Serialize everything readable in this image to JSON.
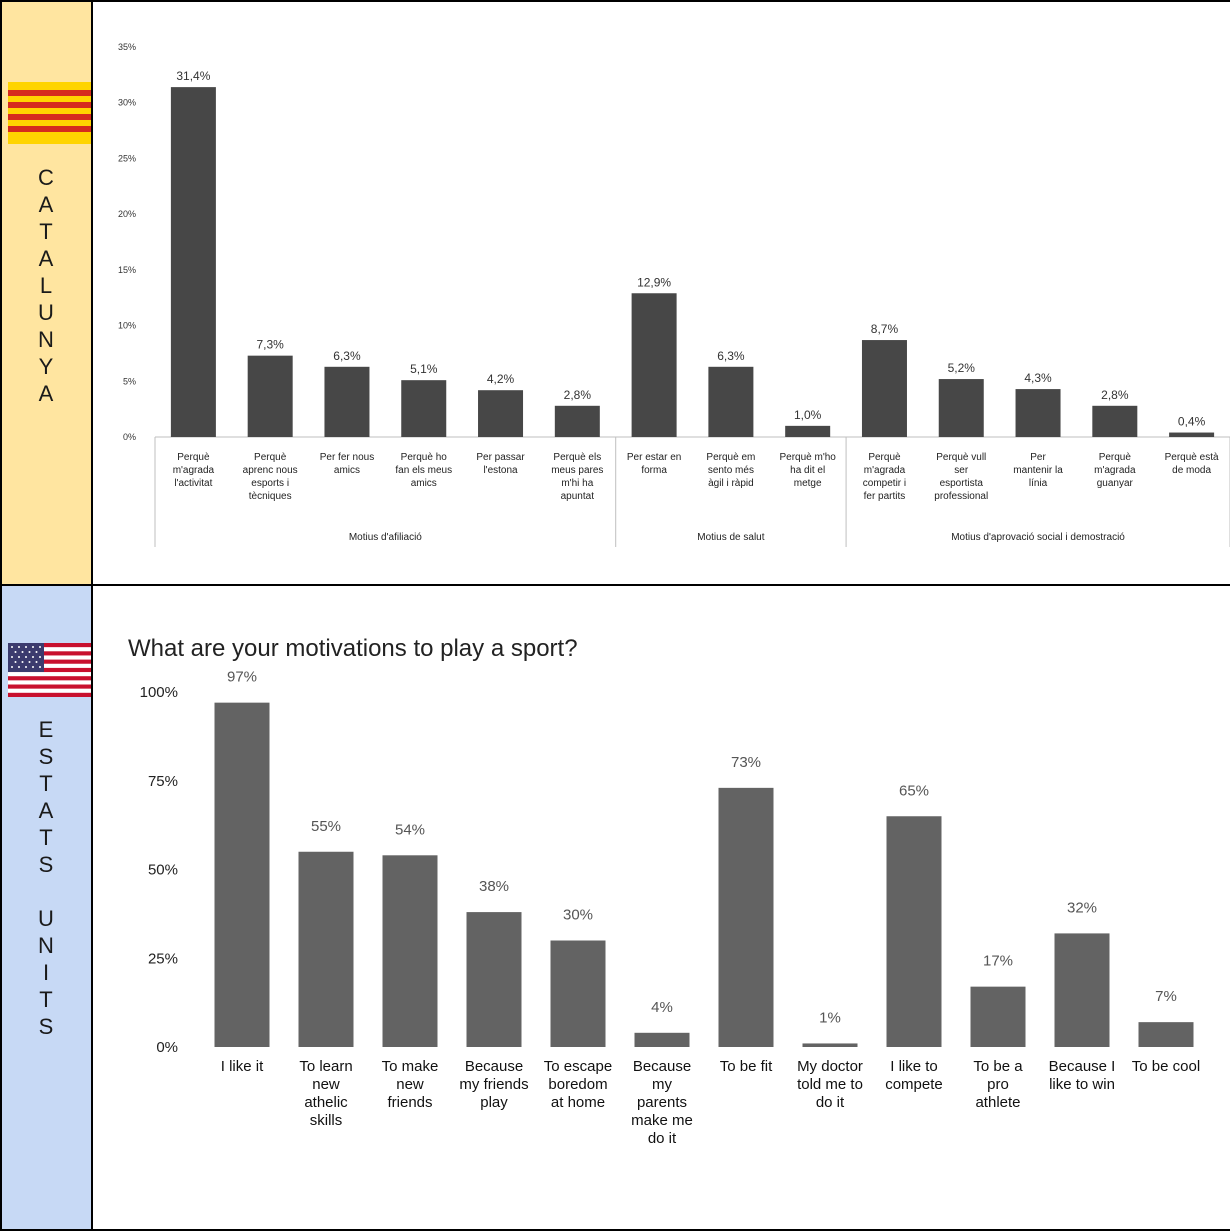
{
  "colors": {
    "cat_side": "#ffe5a0",
    "us_side": "#c7d9f5",
    "bar_cat": "#474747",
    "bar_us": "#636363",
    "border": "#000000"
  },
  "rows": [
    {
      "side_letters": [
        "C",
        "A",
        "T",
        "A",
        "L",
        "U",
        "N",
        "Y",
        "A"
      ],
      "flag_icon": "catalonia-flag-icon"
    },
    {
      "side_letters": [
        "E",
        "S",
        "T",
        "A",
        "T",
        "S",
        "",
        "U",
        "N",
        "I",
        "T",
        "S"
      ],
      "flag_icon": "usa-flag-icon"
    }
  ],
  "chart_data": [
    {
      "type": "bar",
      "title": "",
      "xlabel": "",
      "ylabel": "",
      "ylim": [
        0,
        35
      ],
      "yticks": [
        "0%",
        "5%",
        "10%",
        "15%",
        "20%",
        "25%",
        "30%",
        "35%"
      ],
      "ytick_values": [
        0,
        5,
        10,
        15,
        20,
        25,
        30,
        35
      ],
      "categories": [
        [
          "Perquè",
          "m'agrada",
          "l'activitat"
        ],
        [
          "Perquè",
          "aprenc nous",
          "esports i",
          "tècniques"
        ],
        [
          "Per fer nous",
          "amics"
        ],
        [
          "Perquè ho",
          "fan els meus",
          "amics"
        ],
        [
          "Per passar",
          "l'estona"
        ],
        [
          "Perquè els",
          "meus pares",
          "m'hi ha",
          "apuntat"
        ],
        [
          "Per estar en",
          "forma"
        ],
        [
          "Perquè em",
          "sento més",
          "àgil i ràpid"
        ],
        [
          "Perquè m'ho",
          "ha dit el",
          "metge"
        ],
        [
          "Perquè",
          "m'agrada",
          "competir i",
          "fer partits"
        ],
        [
          "Perquè vull",
          "ser",
          "esportista",
          "professional"
        ],
        [
          "Per",
          "mantenir la",
          "línia"
        ],
        [
          "Perquè",
          "m'agrada",
          "guanyar"
        ],
        [
          "Perquè està",
          "de moda"
        ]
      ],
      "values": [
        31.4,
        7.3,
        6.3,
        5.1,
        4.2,
        2.8,
        12.9,
        6.3,
        1.0,
        8.7,
        5.2,
        4.3,
        2.8,
        0.4
      ],
      "data_labels": [
        "31,4%",
        "7,3%",
        "6,3%",
        "5,1%",
        "4,2%",
        "2,8%",
        "12,9%",
        "6,3%",
        "1,0%",
        "8,7%",
        "5,2%",
        "4,3%",
        "2,8%",
        "0,4%"
      ],
      "groups": [
        {
          "label": "Motius d'afiliació",
          "count": 6
        },
        {
          "label": "Motius de salut",
          "count": 3
        },
        {
          "label": "Motius d'aprovació social i demostració",
          "count": 5
        }
      ],
      "grid": false
    },
    {
      "type": "bar",
      "title": "What are your motivations to play a sport?",
      "xlabel": "",
      "ylabel": "",
      "ylim": [
        0,
        100
      ],
      "yticks": [
        "0%",
        "25%",
        "50%",
        "75%",
        "100%"
      ],
      "ytick_values": [
        0,
        25,
        50,
        75,
        100
      ],
      "categories": [
        [
          "I like it"
        ],
        [
          "To learn",
          "new",
          "athelic",
          "skills"
        ],
        [
          "To make",
          "new",
          "friends"
        ],
        [
          "Because",
          "my friends",
          "play"
        ],
        [
          "To escape",
          "boredom",
          "at home"
        ],
        [
          "Because",
          "my",
          "parents",
          "make me",
          "do it"
        ],
        [
          "To be fit"
        ],
        [
          "My doctor",
          "told me to",
          "do it"
        ],
        [
          "I like to",
          "compete"
        ],
        [
          "To be a",
          "pro",
          "athlete"
        ],
        [
          "Because I",
          "like to win"
        ],
        [
          "To be cool"
        ]
      ],
      "values": [
        97,
        55,
        54,
        38,
        30,
        4,
        73,
        1,
        65,
        17,
        32,
        7
      ],
      "data_labels": [
        "97%",
        "55%",
        "54%",
        "38%",
        "30%",
        "4%",
        "73%",
        "1%",
        "65%",
        "17%",
        "32%",
        "7%"
      ],
      "grid": false
    }
  ]
}
